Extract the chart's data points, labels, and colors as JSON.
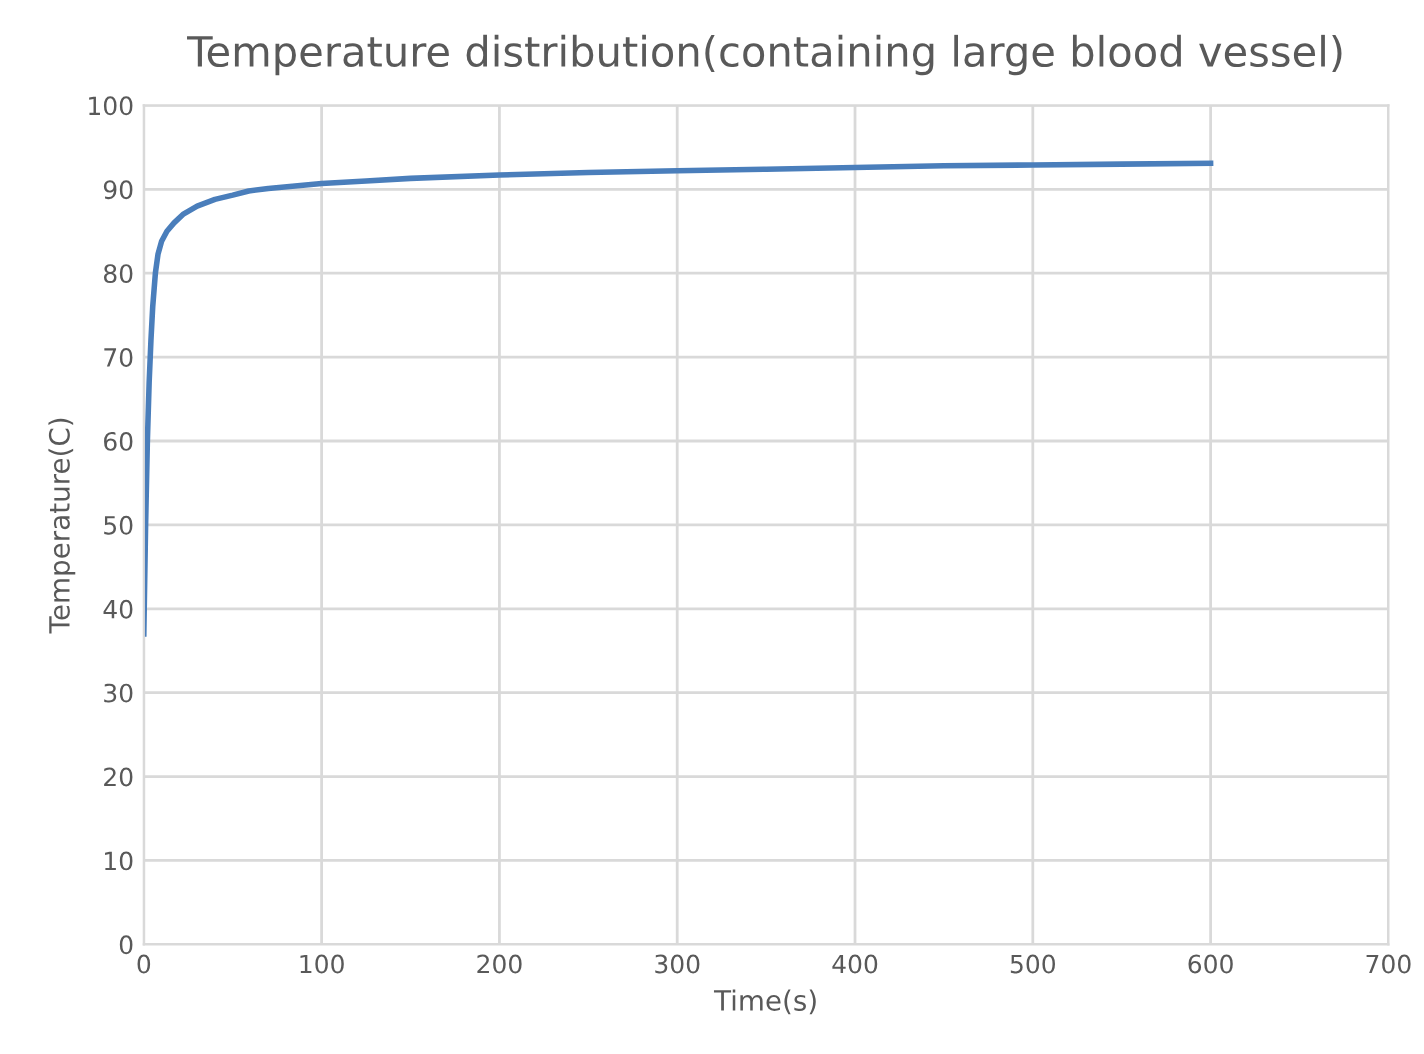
{
  "chart_data": {
    "type": "line",
    "title": "Temperature distribution(containing large blood vessel)",
    "xlabel": "Time(s)",
    "ylabel": "Temperature(C)",
    "series": [
      {
        "color": "#4a7ebb",
        "x": [
          0,
          1,
          2,
          3,
          4,
          5,
          6.5,
          8,
          10,
          13,
          17,
          22,
          30,
          40,
          50,
          59,
          70,
          85,
          100,
          125,
          150,
          200,
          250,
          300,
          350,
          400,
          450,
          500,
          550,
          600
        ],
        "values": [
          37,
          50,
          60,
          67,
          72,
          76,
          80,
          82.3,
          83.8,
          85,
          86,
          87,
          88,
          88.8,
          89.3,
          89.8,
          90.1,
          90.4,
          90.7,
          91,
          91.3,
          91.7,
          92,
          92.2,
          92.4,
          92.6,
          92.8,
          92.9,
          93,
          93.1
        ]
      }
    ],
    "xlim": [
      0,
      700
    ],
    "xticks": [
      0,
      100,
      200,
      300,
      400,
      500,
      600,
      700
    ],
    "ylim": [
      0,
      100
    ],
    "yticks": [
      0,
      10,
      20,
      30,
      40,
      50,
      60,
      70,
      80,
      90,
      100
    ],
    "grid": true,
    "legend": false
  }
}
